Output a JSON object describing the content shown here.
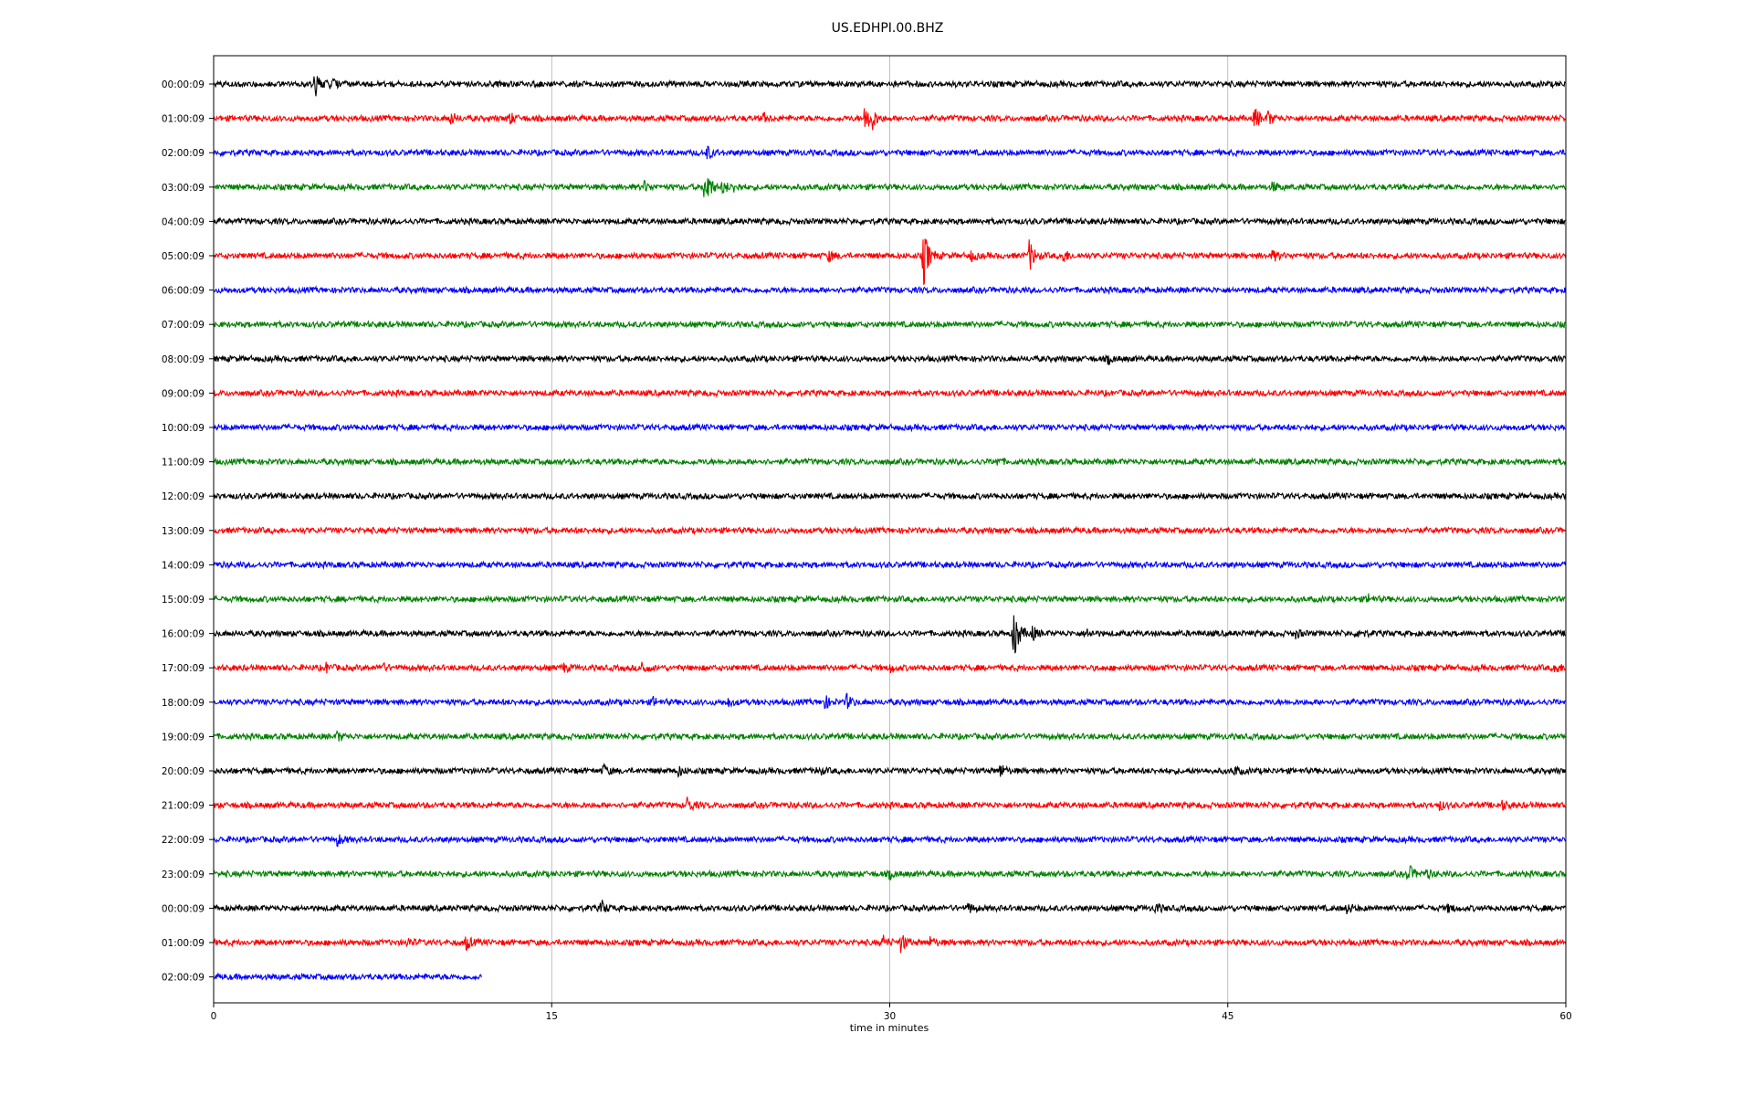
{
  "chart_data": {
    "type": "line",
    "title": "US.EDHPI.00.BHZ",
    "xlabel": "time in minutes",
    "ylabel": "",
    "xlim": [
      0,
      60
    ],
    "xticks": [
      0,
      15,
      30,
      45,
      60
    ],
    "xtick_labels": [
      "0",
      "15",
      "30",
      "45",
      "60"
    ],
    "grid": "vertical",
    "legend": "none",
    "color_cycle": [
      "#000000",
      "#ff0000",
      "#0000ff",
      "#008000"
    ],
    "rows": [
      {
        "label": "00:00:09",
        "end": 60,
        "events": [
          {
            "t": 4.5,
            "a": 1.6
          },
          {
            "t": 5.2,
            "a": 0.6
          }
        ]
      },
      {
        "label": "01:00:09",
        "end": 60,
        "events": [
          {
            "t": 10.5,
            "a": 0.8
          },
          {
            "t": 13.1,
            "a": 0.8
          },
          {
            "t": 24.4,
            "a": 0.5
          },
          {
            "t": 28.9,
            "a": 1.7
          },
          {
            "t": 29.1,
            "a": 2.0
          },
          {
            "t": 46.2,
            "a": 1.4
          },
          {
            "t": 46.8,
            "a": 0.8
          }
        ]
      },
      {
        "label": "02:00:09",
        "end": 60,
        "events": [
          {
            "t": 21.9,
            "a": 0.8
          }
        ]
      },
      {
        "label": "03:00:09",
        "end": 60,
        "events": [
          {
            "t": 19.1,
            "a": 0.6
          },
          {
            "t": 21.8,
            "a": 3.2
          },
          {
            "t": 22.6,
            "a": 0.8
          },
          {
            "t": 23.1,
            "a": 0.5
          },
          {
            "t": 47.0,
            "a": 0.6
          }
        ]
      },
      {
        "label": "04:00:09",
        "end": 60,
        "events": []
      },
      {
        "label": "05:00:09",
        "end": 60,
        "events": [
          {
            "t": 27.3,
            "a": 0.6
          },
          {
            "t": 31.5,
            "a": 3.8
          },
          {
            "t": 33.6,
            "a": 0.6
          },
          {
            "t": 36.2,
            "a": 2.0
          },
          {
            "t": 37.7,
            "a": 0.8
          },
          {
            "t": 47.0,
            "a": 0.6
          }
        ]
      },
      {
        "label": "06:00:09",
        "end": 60,
        "events": []
      },
      {
        "label": "07:00:09",
        "end": 60,
        "events": []
      },
      {
        "label": "08:00:09",
        "end": 60,
        "events": [
          {
            "t": 39.7,
            "a": 0.5
          }
        ]
      },
      {
        "label": "09:00:09",
        "end": 60,
        "events": []
      },
      {
        "label": "10:00:09",
        "end": 60,
        "events": []
      },
      {
        "label": "11:00:09",
        "end": 60,
        "events": [
          {
            "t": 34.7,
            "a": 0.5
          }
        ]
      },
      {
        "label": "12:00:09",
        "end": 60,
        "events": []
      },
      {
        "label": "13:00:09",
        "end": 60,
        "events": []
      },
      {
        "label": "14:00:09",
        "end": 60,
        "events": []
      },
      {
        "label": "15:00:09",
        "end": 60,
        "events": [
          {
            "t": 51.2,
            "a": 0.6
          }
        ]
      },
      {
        "label": "16:00:09",
        "end": 60,
        "events": [
          {
            "t": 35.5,
            "a": 3.8
          },
          {
            "t": 36.3,
            "a": 0.9
          },
          {
            "t": 38.7,
            "a": 0.6
          },
          {
            "t": 48.0,
            "a": 0.5
          },
          {
            "t": 50.8,
            "a": 0.6
          }
        ]
      },
      {
        "label": "17:00:09",
        "end": 60,
        "events": [
          {
            "t": 5.0,
            "a": 0.5
          },
          {
            "t": 7.4,
            "a": 0.6
          },
          {
            "t": 15.5,
            "a": 0.5
          },
          {
            "t": 19.0,
            "a": 0.9
          },
          {
            "t": 30.0,
            "a": 0.5
          },
          {
            "t": 59.5,
            "a": 0.8
          }
        ]
      },
      {
        "label": "18:00:09",
        "end": 60,
        "events": [
          {
            "t": 19.5,
            "a": 0.5
          },
          {
            "t": 22.8,
            "a": 0.5
          },
          {
            "t": 27.1,
            "a": 0.9
          },
          {
            "t": 28.1,
            "a": 0.9
          }
        ]
      },
      {
        "label": "19:00:09",
        "end": 60,
        "events": [
          {
            "t": 5.5,
            "a": 0.6
          }
        ]
      },
      {
        "label": "20:00:09",
        "end": 60,
        "events": [
          {
            "t": 17.3,
            "a": 0.7
          },
          {
            "t": 20.6,
            "a": 0.6
          },
          {
            "t": 26.8,
            "a": 0.5
          },
          {
            "t": 34.9,
            "a": 0.8
          },
          {
            "t": 45.3,
            "a": 0.5
          }
        ]
      },
      {
        "label": "21:00:09",
        "end": 60,
        "events": [
          {
            "t": 21.0,
            "a": 1.0
          },
          {
            "t": 54.4,
            "a": 0.5
          },
          {
            "t": 57.2,
            "a": 0.5
          }
        ]
      },
      {
        "label": "22:00:09",
        "end": 60,
        "events": [
          {
            "t": 5.5,
            "a": 0.7
          }
        ]
      },
      {
        "label": "23:00:09",
        "end": 60,
        "events": [
          {
            "t": 30.0,
            "a": 0.5
          },
          {
            "t": 53.0,
            "a": 1.2
          },
          {
            "t": 53.8,
            "a": 0.5
          }
        ]
      },
      {
        "label": "00:00:09",
        "end": 60,
        "events": [
          {
            "t": 17.2,
            "a": 0.9
          },
          {
            "t": 33.5,
            "a": 0.6
          },
          {
            "t": 41.8,
            "a": 0.6
          },
          {
            "t": 50.3,
            "a": 0.7
          },
          {
            "t": 54.8,
            "a": 0.5
          }
        ]
      },
      {
        "label": "01:00:09",
        "end": 60,
        "events": [
          {
            "t": 8.6,
            "a": 0.5
          },
          {
            "t": 11.2,
            "a": 0.9
          },
          {
            "t": 29.7,
            "a": 0.8
          },
          {
            "t": 30.5,
            "a": 1.2
          },
          {
            "t": 31.8,
            "a": 0.6
          }
        ]
      },
      {
        "label": "02:00:09",
        "end": 11.9,
        "events": []
      }
    ]
  }
}
